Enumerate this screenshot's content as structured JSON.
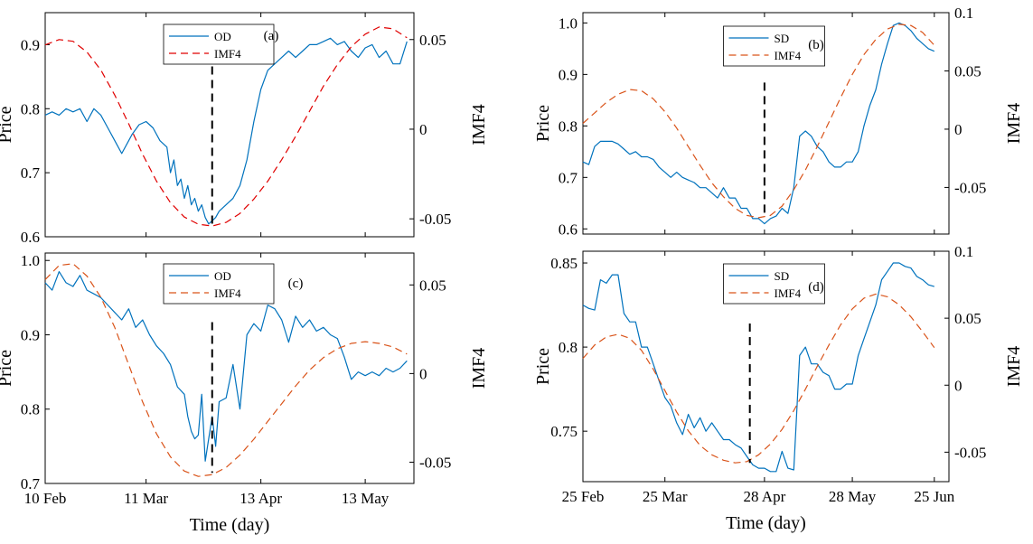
{
  "colors": {
    "price": "#0072BD",
    "imf": "#D95319",
    "imf_a": "#E00000",
    "marker": "#000000",
    "axes": "#000000"
  },
  "chart_data": [
    {
      "type": "line",
      "panel_label": "(a)",
      "xlabel": "",
      "ylabel_left": "Price",
      "ylabel_right": "IMF4",
      "x_ticks": [
        {
          "day": 0,
          "label": "10 Feb"
        },
        {
          "day": 29,
          "label": "11 Mar"
        },
        {
          "day": 62,
          "label": "13 Apr"
        },
        {
          "day": 92,
          "label": "13 May"
        }
      ],
      "xlim": [
        0,
        106
      ],
      "ylim_left": [
        0.6,
        0.95
      ],
      "yticks_left": [
        "0.6",
        "0.7",
        "0.8",
        "0.9"
      ],
      "ylim_right": [
        -0.06,
        0.065
      ],
      "yticks_right": [
        "-0.05",
        "0",
        "0.05"
      ],
      "event_day": 48,
      "event_range_right": [
        -0.055,
        0.035
      ],
      "legend": {
        "placement": "top-center",
        "entries": [
          "OD",
          "IMF4"
        ]
      },
      "series": [
        {
          "name": "OD",
          "axis": "left",
          "style": "solid",
          "x": [
            0,
            2,
            4,
            6,
            8,
            10,
            12,
            14,
            16,
            18,
            20,
            22,
            24,
            25,
            27,
            29,
            31,
            33,
            35,
            36,
            37,
            38,
            39,
            40,
            41,
            42,
            43,
            44,
            45,
            46,
            47,
            48,
            49,
            50,
            52,
            54,
            56,
            58,
            60,
            62,
            64,
            66,
            68,
            70,
            72,
            74,
            76,
            78,
            80,
            82,
            84,
            86,
            88,
            90,
            92,
            94,
            96,
            98,
            100,
            102,
            104
          ],
          "y": [
            0.79,
            0.795,
            0.79,
            0.8,
            0.795,
            0.8,
            0.78,
            0.8,
            0.79,
            0.77,
            0.75,
            0.73,
            0.75,
            0.76,
            0.775,
            0.78,
            0.77,
            0.75,
            0.74,
            0.7,
            0.72,
            0.68,
            0.69,
            0.66,
            0.68,
            0.65,
            0.66,
            0.64,
            0.65,
            0.63,
            0.62,
            0.625,
            0.63,
            0.64,
            0.65,
            0.66,
            0.68,
            0.72,
            0.78,
            0.83,
            0.86,
            0.87,
            0.88,
            0.89,
            0.88,
            0.89,
            0.9,
            0.9,
            0.905,
            0.91,
            0.9,
            0.905,
            0.89,
            0.88,
            0.895,
            0.9,
            0.88,
            0.89,
            0.87,
            0.87,
            0.905
          ]
        },
        {
          "name": "IMF4",
          "axis": "right",
          "style": "dashed",
          "x": [
            0,
            4,
            8,
            12,
            16,
            20,
            24,
            28,
            32,
            36,
            40,
            44,
            48,
            52,
            56,
            60,
            64,
            68,
            72,
            76,
            80,
            84,
            88,
            92,
            96,
            100,
            104
          ],
          "y": [
            0.047,
            0.05,
            0.049,
            0.043,
            0.033,
            0.019,
            0.003,
            -0.014,
            -0.029,
            -0.041,
            -0.049,
            -0.053,
            -0.054,
            -0.052,
            -0.047,
            -0.039,
            -0.029,
            -0.017,
            -0.004,
            0.01,
            0.024,
            0.036,
            0.046,
            0.053,
            0.057,
            0.056,
            0.051
          ]
        }
      ]
    },
    {
      "type": "line",
      "panel_label": "(b)",
      "xlabel": "",
      "ylabel_left": "Price",
      "ylabel_right": "IMF4",
      "x_ticks": [
        {
          "day": 0,
          "label": "25 Feb"
        },
        {
          "day": 28,
          "label": "25 Mar"
        },
        {
          "day": 62,
          "label": "28 Apr"
        },
        {
          "day": 92,
          "label": "28 May"
        },
        {
          "day": 120,
          "label": "25 Jun"
        }
      ],
      "xlim": [
        0,
        125
      ],
      "ylim_left": [
        0.59,
        1.02
      ],
      "yticks_left": [
        "0.6",
        "0.7",
        "0.8",
        "0.9",
        "1.0"
      ],
      "ylim_right": [
        -0.09,
        0.1
      ],
      "yticks_right": [
        "-0.05",
        "0",
        "0.05",
        "0.1"
      ],
      "event_day": 62,
      "event_range_right": [
        -0.075,
        0.04
      ],
      "legend": {
        "placement": "top-center",
        "entries": [
          "SD",
          "IMF4"
        ]
      },
      "series": [
        {
          "name": "SD",
          "axis": "left",
          "style": "solid",
          "x": [
            0,
            2,
            4,
            6,
            8,
            10,
            12,
            14,
            16,
            18,
            20,
            22,
            24,
            26,
            28,
            30,
            32,
            34,
            36,
            38,
            40,
            42,
            44,
            46,
            48,
            50,
            52,
            54,
            56,
            58,
            60,
            62,
            64,
            66,
            68,
            70,
            72,
            74,
            76,
            78,
            80,
            82,
            84,
            86,
            88,
            90,
            92,
            94,
            96,
            98,
            100,
            102,
            104,
            106,
            108,
            110,
            112,
            114,
            116,
            118,
            120
          ],
          "y": [
            0.73,
            0.725,
            0.76,
            0.77,
            0.77,
            0.77,
            0.765,
            0.755,
            0.745,
            0.75,
            0.74,
            0.74,
            0.735,
            0.72,
            0.71,
            0.7,
            0.71,
            0.7,
            0.695,
            0.69,
            0.68,
            0.68,
            0.67,
            0.66,
            0.68,
            0.66,
            0.66,
            0.64,
            0.64,
            0.62,
            0.62,
            0.61,
            0.62,
            0.625,
            0.64,
            0.63,
            0.68,
            0.78,
            0.79,
            0.78,
            0.76,
            0.75,
            0.73,
            0.72,
            0.72,
            0.73,
            0.73,
            0.75,
            0.8,
            0.84,
            0.87,
            0.92,
            0.96,
            0.995,
            1.0,
            0.995,
            0.985,
            0.97,
            0.96,
            0.95,
            0.945
          ]
        },
        {
          "name": "IMF4",
          "axis": "right",
          "style": "dashed",
          "x": [
            0,
            4,
            8,
            12,
            16,
            20,
            24,
            28,
            32,
            36,
            40,
            44,
            48,
            52,
            56,
            60,
            64,
            68,
            72,
            76,
            80,
            84,
            88,
            92,
            96,
            100,
            104,
            108,
            112,
            116,
            120
          ],
          "y": [
            0.005,
            0.014,
            0.023,
            0.03,
            0.034,
            0.033,
            0.026,
            0.015,
            0.001,
            -0.015,
            -0.031,
            -0.046,
            -0.058,
            -0.068,
            -0.074,
            -0.076,
            -0.074,
            -0.066,
            -0.052,
            -0.035,
            -0.015,
            0.006,
            0.027,
            0.047,
            0.064,
            0.077,
            0.086,
            0.09,
            0.089,
            0.083,
            0.072
          ]
        }
      ]
    },
    {
      "type": "line",
      "panel_label": "(c)",
      "xlabel": "Time (day)",
      "ylabel_left": "Price",
      "ylabel_right": "IMF4",
      "x_ticks": [
        {
          "day": 0,
          "label": "10 Feb"
        },
        {
          "day": 29,
          "label": "11 Mar"
        },
        {
          "day": 62,
          "label": "13 Apr"
        },
        {
          "day": 92,
          "label": "13 May"
        }
      ],
      "xlim": [
        0,
        106
      ],
      "ylim_left": [
        0.7,
        1.01
      ],
      "yticks_left": [
        "0.7",
        "0.8",
        "0.9",
        "1.0"
      ],
      "ylim_right": [
        -0.062,
        0.068
      ],
      "yticks_right": [
        "-0.05",
        "0",
        "0.05"
      ],
      "event_day": 48,
      "event_range_right": [
        -0.056,
        0.029
      ],
      "legend": {
        "placement": "top-center",
        "entries": [
          "OD",
          "IMF4"
        ]
      },
      "series": [
        {
          "name": "OD",
          "axis": "left",
          "style": "solid",
          "x": [
            0,
            2,
            4,
            6,
            8,
            10,
            12,
            14,
            16,
            18,
            20,
            22,
            24,
            26,
            28,
            30,
            32,
            34,
            36,
            38,
            40,
            41,
            42,
            43,
            44,
            45,
            46,
            47,
            48,
            49,
            50,
            52,
            54,
            56,
            58,
            60,
            62,
            64,
            66,
            68,
            70,
            72,
            74,
            76,
            78,
            80,
            82,
            84,
            86,
            88,
            90,
            92,
            94,
            96,
            98,
            100,
            102,
            104
          ],
          "y": [
            0.97,
            0.96,
            0.985,
            0.97,
            0.965,
            0.98,
            0.96,
            0.955,
            0.95,
            0.94,
            0.93,
            0.92,
            0.935,
            0.91,
            0.92,
            0.9,
            0.885,
            0.875,
            0.86,
            0.83,
            0.82,
            0.79,
            0.77,
            0.76,
            0.765,
            0.82,
            0.73,
            0.76,
            0.79,
            0.75,
            0.81,
            0.815,
            0.86,
            0.8,
            0.9,
            0.915,
            0.905,
            0.94,
            0.935,
            0.92,
            0.89,
            0.925,
            0.91,
            0.92,
            0.905,
            0.91,
            0.9,
            0.895,
            0.87,
            0.84,
            0.85,
            0.845,
            0.85,
            0.845,
            0.855,
            0.85,
            0.855,
            0.865
          ]
        },
        {
          "name": "IMF4",
          "axis": "right",
          "style": "dashed",
          "x": [
            0,
            4,
            8,
            12,
            16,
            20,
            24,
            28,
            32,
            36,
            40,
            44,
            48,
            52,
            56,
            60,
            64,
            68,
            72,
            76,
            80,
            84,
            88,
            92,
            96,
            100,
            104
          ],
          "y": [
            0.053,
            0.061,
            0.062,
            0.055,
            0.043,
            0.026,
            0.005,
            -0.016,
            -0.034,
            -0.047,
            -0.055,
            -0.058,
            -0.057,
            -0.053,
            -0.046,
            -0.037,
            -0.027,
            -0.017,
            -0.007,
            0.002,
            0.009,
            0.014,
            0.017,
            0.018,
            0.017,
            0.015,
            0.011
          ]
        }
      ]
    },
    {
      "type": "line",
      "panel_label": "(d)",
      "xlabel": "Time (day)",
      "ylabel_left": "Price",
      "ylabel_right": "IMF4",
      "x_ticks": [
        {
          "day": 0,
          "label": "25 Feb"
        },
        {
          "day": 28,
          "label": "25 Mar"
        },
        {
          "day": 62,
          "label": "28 Apr"
        },
        {
          "day": 92,
          "label": "28 May"
        },
        {
          "day": 120,
          "label": "25 Jun"
        }
      ],
      "xlim": [
        0,
        125
      ],
      "ylim_left": [
        0.72,
        0.857
      ],
      "yticks_left": [
        "0.75",
        "0.8",
        "0.85"
      ],
      "ylim_right": [
        -0.072,
        0.1
      ],
      "yticks_right": [
        "-0.05",
        "0",
        "0.05",
        "0.1"
      ],
      "event_day": 57,
      "event_range_right": [
        -0.058,
        0.046
      ],
      "legend": {
        "placement": "top-center",
        "entries": [
          "SD",
          "IMF4"
        ]
      },
      "series": [
        {
          "name": "SD",
          "axis": "left",
          "style": "solid",
          "x": [
            0,
            2,
            4,
            6,
            8,
            10,
            12,
            14,
            16,
            18,
            20,
            22,
            24,
            26,
            28,
            30,
            32,
            34,
            36,
            38,
            40,
            42,
            44,
            46,
            48,
            50,
            52,
            54,
            56,
            58,
            60,
            62,
            64,
            66,
            68,
            70,
            72,
            74,
            76,
            78,
            80,
            82,
            84,
            86,
            88,
            90,
            92,
            94,
            96,
            98,
            100,
            102,
            104,
            106,
            108,
            110,
            112,
            114,
            116,
            118,
            120
          ],
          "y": [
            0.825,
            0.823,
            0.822,
            0.84,
            0.838,
            0.843,
            0.843,
            0.82,
            0.815,
            0.815,
            0.8,
            0.8,
            0.79,
            0.78,
            0.77,
            0.765,
            0.755,
            0.748,
            0.76,
            0.752,
            0.758,
            0.75,
            0.755,
            0.75,
            0.745,
            0.745,
            0.742,
            0.74,
            0.735,
            0.73,
            0.728,
            0.728,
            0.726,
            0.726,
            0.738,
            0.728,
            0.727,
            0.795,
            0.8,
            0.79,
            0.79,
            0.785,
            0.783,
            0.775,
            0.775,
            0.778,
            0.778,
            0.795,
            0.805,
            0.815,
            0.825,
            0.84,
            0.845,
            0.85,
            0.85,
            0.848,
            0.847,
            0.842,
            0.84,
            0.837,
            0.836
          ]
        },
        {
          "name": "IMF4",
          "axis": "right",
          "style": "dashed",
          "x": [
            0,
            4,
            8,
            12,
            16,
            20,
            24,
            28,
            32,
            36,
            40,
            44,
            48,
            52,
            56,
            60,
            64,
            68,
            72,
            76,
            80,
            84,
            88,
            92,
            96,
            100,
            104,
            108,
            112,
            116,
            120
          ],
          "y": [
            0.02,
            0.03,
            0.036,
            0.038,
            0.035,
            0.026,
            0.012,
            -0.004,
            -0.02,
            -0.034,
            -0.045,
            -0.052,
            -0.056,
            -0.058,
            -0.057,
            -0.052,
            -0.044,
            -0.033,
            -0.019,
            -0.003,
            0.014,
            0.03,
            0.045,
            0.057,
            0.065,
            0.068,
            0.066,
            0.06,
            0.051,
            0.04,
            0.028
          ]
        }
      ]
    }
  ]
}
